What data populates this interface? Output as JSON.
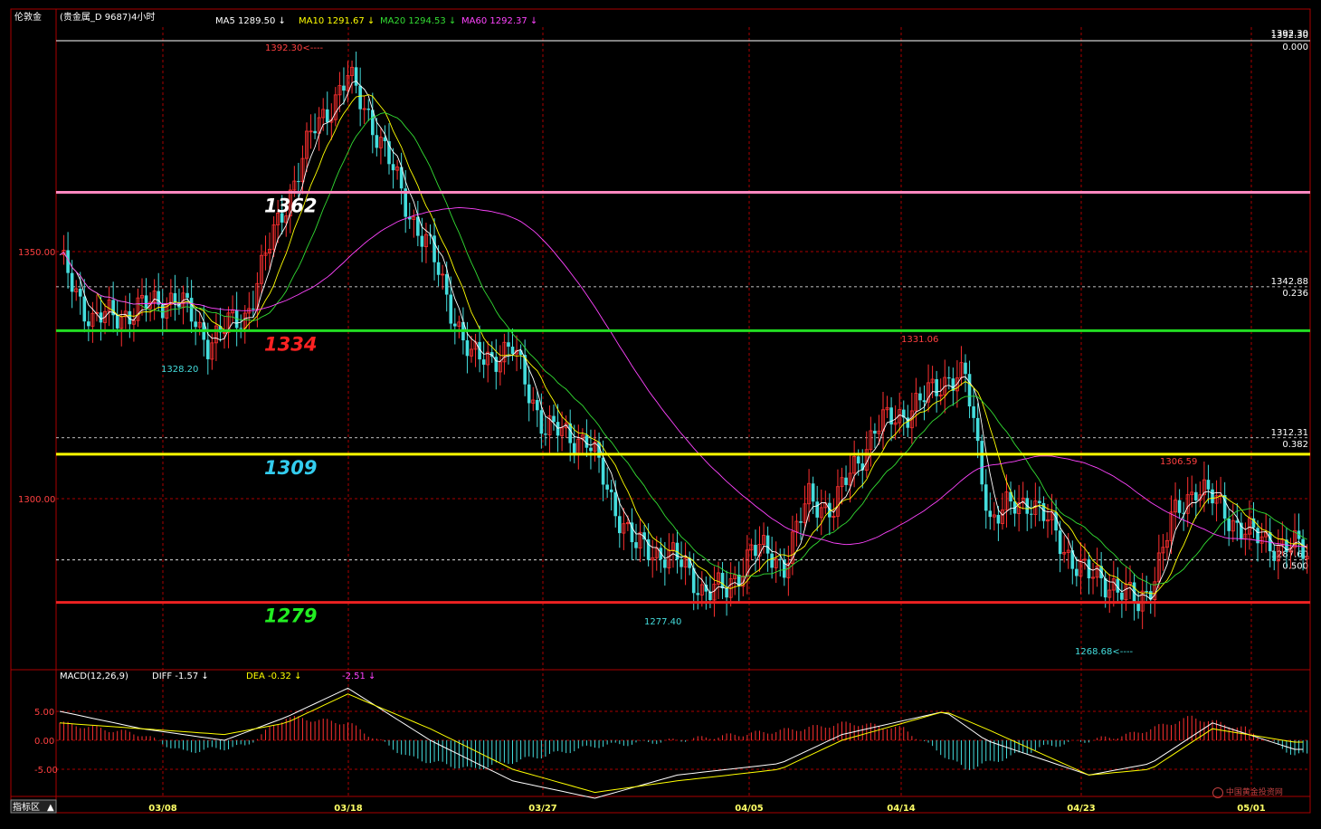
{
  "header": {
    "symbol": "伦敦金",
    "subtitle": "(贵金属_D 9687)4小时",
    "ma": [
      {
        "label": "MA5 1289.50 ↓",
        "color": "#ffffff"
      },
      {
        "label": "MA10 1291.67 ↓",
        "color": "#ffff00"
      },
      {
        "label": "MA20 1294.53 ↓",
        "color": "#33dd33"
      },
      {
        "label": "MA60 1292.37 ↓",
        "color": "#ff44ff"
      }
    ]
  },
  "indicator": {
    "name": "MACD(12,26,9)",
    "diff": "DIFF  -1.57 ↓",
    "dea": "DEA  -0.32 ↓",
    "macd": "-2.51 ↓",
    "yticks": [
      "5.00",
      "0.00",
      "-5.00"
    ],
    "tab_label": "指标区",
    "tab_arrow": "▲"
  },
  "watermark": "中国黄金投资网",
  "chart_data": {
    "type": "candlestick",
    "period": "4小时",
    "x_ticks": [
      "03/08",
      "03/18",
      "03/27",
      "04/05",
      "04/14",
      "04/23",
      "05/01"
    ],
    "y_ticks": [
      "1350.00",
      "1300.00"
    ],
    "ylim": [
      1260,
      1392.3
    ],
    "price_labels": {
      "high": "1392.30",
      "top_right": "1392.30",
      "low1": "1328.20",
      "low2": "1277.40",
      "low3": "1268.68",
      "peak2": "1331.06",
      "peak3": "1306.59"
    },
    "fib_levels": [
      {
        "price": 1392.3,
        "price_label": "1392.30",
        "ratio": "0.000"
      },
      {
        "price": 1342.88,
        "price_label": "1342.88",
        "ratio": "0.236"
      },
      {
        "price": 1312.31,
        "price_label": "1312.31",
        "ratio": "0.382"
      },
      {
        "price": 1287.6,
        "price_label": "1287.60",
        "ratio": "0.500"
      }
    ],
    "support_resistance": [
      {
        "price": 1362,
        "label": "1362",
        "line_color": "#ff88c0",
        "text_color": "#ffffff"
      },
      {
        "price": 1334,
        "label": "1334",
        "line_color": "#22dd22",
        "text_color": "#ff2222"
      },
      {
        "price": 1309,
        "label": "1309",
        "line_color": "#ffff00",
        "text_color": "#33ccee"
      },
      {
        "price": 1279,
        "label": "1279",
        "line_color": "#ee2222",
        "text_color": "#22ee22"
      }
    ],
    "colors": {
      "up": "#ff3030",
      "down": "#44dddd",
      "grid": "#aa0000",
      "frame": "#aa0000"
    },
    "close_path": [
      [
        0,
        1348
      ],
      [
        8,
        1336
      ],
      [
        18,
        1338
      ],
      [
        28,
        1341
      ],
      [
        36,
        1332
      ],
      [
        45,
        1337
      ],
      [
        54,
        1358
      ],
      [
        62,
        1375
      ],
      [
        70,
        1385
      ],
      [
        75,
        1378
      ],
      [
        80,
        1368
      ],
      [
        85,
        1358
      ],
      [
        90,
        1350
      ],
      [
        100,
        1328
      ],
      [
        110,
        1330
      ],
      [
        118,
        1314
      ],
      [
        128,
        1312
      ],
      [
        134,
        1300
      ],
      [
        140,
        1290
      ],
      [
        148,
        1289
      ],
      [
        156,
        1282
      ],
      [
        162,
        1281
      ],
      [
        168,
        1290
      ],
      [
        176,
        1287
      ],
      [
        182,
        1300
      ],
      [
        188,
        1298
      ],
      [
        192,
        1305
      ],
      [
        198,
        1314
      ],
      [
        210,
        1320
      ],
      [
        216,
        1325
      ],
      [
        220,
        1324
      ],
      [
        226,
        1296
      ],
      [
        236,
        1300
      ],
      [
        244,
        1290
      ],
      [
        250,
        1284
      ],
      [
        256,
        1283
      ],
      [
        262,
        1278
      ],
      [
        266,
        1285
      ],
      [
        270,
        1295
      ],
      [
        276,
        1303
      ],
      [
        282,
        1298
      ],
      [
        290,
        1292
      ],
      [
        300,
        1290
      ],
      [
        303,
        1289
      ]
    ],
    "macd": {
      "diff": [
        [
          0,
          5
        ],
        [
          20,
          2
        ],
        [
          40,
          0
        ],
        [
          55,
          4
        ],
        [
          70,
          9
        ],
        [
          90,
          0
        ],
        [
          110,
          -7
        ],
        [
          130,
          -10
        ],
        [
          150,
          -6
        ],
        [
          175,
          -4
        ],
        [
          190,
          1
        ],
        [
          215,
          5
        ],
        [
          225,
          0
        ],
        [
          250,
          -6
        ],
        [
          265,
          -4
        ],
        [
          280,
          3
        ],
        [
          300,
          -1.57
        ]
      ],
      "dea": [
        [
          0,
          3
        ],
        [
          20,
          2
        ],
        [
          40,
          1
        ],
        [
          55,
          3
        ],
        [
          70,
          8
        ],
        [
          90,
          2
        ],
        [
          110,
          -5
        ],
        [
          130,
          -9
        ],
        [
          150,
          -7
        ],
        [
          175,
          -5
        ],
        [
          190,
          0
        ],
        [
          215,
          5
        ],
        [
          225,
          2
        ],
        [
          250,
          -6
        ],
        [
          265,
          -5
        ],
        [
          280,
          2
        ],
        [
          300,
          -0.32
        ]
      ],
      "macd": [
        [
          0,
          3
        ],
        [
          20,
          1
        ],
        [
          30,
          -2
        ],
        [
          45,
          -1
        ],
        [
          55,
          4
        ],
        [
          70,
          3
        ],
        [
          85,
          -3
        ],
        [
          100,
          -5
        ],
        [
          115,
          -3
        ],
        [
          130,
          -1
        ],
        [
          150,
          0
        ],
        [
          165,
          1
        ],
        [
          180,
          2
        ],
        [
          192,
          3
        ],
        [
          205,
          2
        ],
        [
          220,
          -5
        ],
        [
          240,
          -1
        ],
        [
          260,
          1
        ],
        [
          275,
          4
        ],
        [
          288,
          2
        ],
        [
          300,
          -2.51
        ]
      ]
    }
  }
}
